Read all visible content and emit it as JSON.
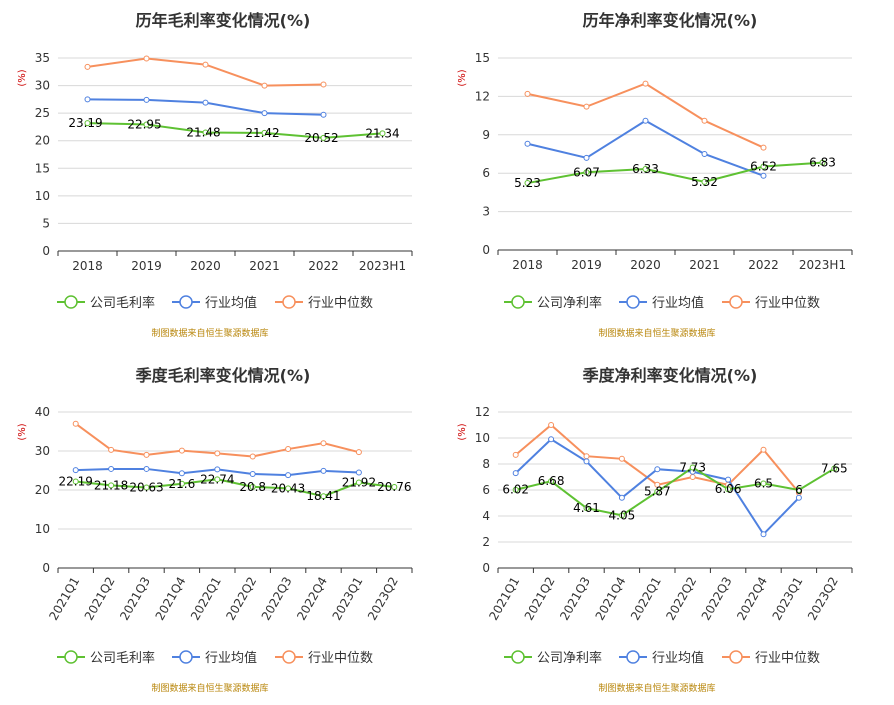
{
  "colors": {
    "company": "#5ec132",
    "industry_avg": "#4f81e0",
    "industry_median": "#f7905d",
    "source": "#b8860b",
    "unit": "#cc0000"
  },
  "chart_data": [
    {
      "type": "line",
      "title": "历年毛利率变化情况(%)",
      "ylabel": "(%)",
      "categories": [
        "2018",
        "2019",
        "2020",
        "2021",
        "2022",
        "2023H1"
      ],
      "ylim": [
        0,
        35
      ],
      "yticks": [
        "0",
        "5",
        "10",
        "15",
        "20",
        "25",
        "30",
        "35"
      ],
      "series": [
        {
          "name": "公司毛利率",
          "values": [
            23.19,
            22.95,
            21.48,
            21.42,
            20.52,
            21.34
          ],
          "labels": [
            "23.19",
            "22.95",
            "21.48",
            "21.42",
            "20.52",
            "21.34"
          ]
        },
        {
          "name": "行业均值",
          "values": [
            27.5,
            27.4,
            26.9,
            25.0,
            24.7,
            null
          ]
        },
        {
          "name": "行业中位数",
          "values": [
            33.4,
            34.9,
            33.8,
            30.0,
            30.2,
            null
          ]
        }
      ],
      "legend": [
        "公司毛利率",
        "行业均值",
        "行业中位数"
      ],
      "source": "制图数据来自恒生聚源数据库",
      "grid": true,
      "legend_position": "bottom"
    },
    {
      "type": "line",
      "title": "历年净利率变化情况(%)",
      "ylabel": "(%)",
      "categories": [
        "2018",
        "2019",
        "2020",
        "2021",
        "2022",
        "2023H1"
      ],
      "ylim": [
        0,
        15
      ],
      "yticks": [
        "0",
        "3",
        "6",
        "9",
        "12",
        "15"
      ],
      "series": [
        {
          "name": "公司净利率",
          "values": [
            5.23,
            6.07,
            6.33,
            5.32,
            6.52,
            6.83
          ],
          "labels": [
            "5.23",
            "6.07",
            "6.33",
            "5.32",
            "6.52",
            "6.83"
          ]
        },
        {
          "name": "行业均值",
          "values": [
            8.3,
            7.2,
            10.1,
            7.5,
            5.8,
            null
          ]
        },
        {
          "name": "行业中位数",
          "values": [
            12.2,
            11.2,
            13.0,
            10.1,
            8.0,
            null
          ]
        }
      ],
      "legend": [
        "公司净利率",
        "行业均值",
        "行业中位数"
      ],
      "source": "制图数据来自恒生聚源数据库",
      "grid": true,
      "legend_position": "bottom"
    },
    {
      "type": "line",
      "title": "季度毛利率变化情况(%)",
      "ylabel": "(%)",
      "categories": [
        "2021Q1",
        "2021Q2",
        "2021Q3",
        "2021Q4",
        "2022Q1",
        "2022Q2",
        "2022Q3",
        "2022Q4",
        "2023Q1",
        "2023Q2"
      ],
      "ylim": [
        0,
        40
      ],
      "yticks": [
        "0",
        "10",
        "20",
        "30",
        "40"
      ],
      "series": [
        {
          "name": "公司毛利率",
          "values": [
            22.19,
            21.18,
            20.63,
            21.6,
            22.74,
            20.8,
            20.43,
            18.41,
            21.92,
            20.76
          ],
          "labels": [
            "22.19",
            "21.18",
            "20.63",
            "21.6",
            "22.74",
            "20.8",
            "20.43",
            "18.41",
            "21.92",
            "20.76"
          ]
        },
        {
          "name": "行业均值",
          "values": [
            25.1,
            25.4,
            25.4,
            24.3,
            25.3,
            24.1,
            23.8,
            24.9,
            24.5,
            null
          ]
        },
        {
          "name": "行业中位数",
          "values": [
            37.0,
            30.3,
            29.0,
            30.1,
            29.4,
            28.6,
            30.5,
            32.0,
            29.7,
            null
          ]
        }
      ],
      "legend": [
        "公司毛利率",
        "行业均值",
        "行业中位数"
      ],
      "source": "制图数据来自恒生聚源数据库",
      "grid": true,
      "legend_position": "bottom"
    },
    {
      "type": "line",
      "title": "季度净利率变化情况(%)",
      "ylabel": "(%)",
      "categories": [
        "2021Q1",
        "2021Q2",
        "2021Q3",
        "2021Q4",
        "2022Q1",
        "2022Q2",
        "2022Q3",
        "2022Q4",
        "2023Q1",
        "2023Q2"
      ],
      "ylim": [
        0,
        12
      ],
      "yticks": [
        "0",
        "2",
        "4",
        "6",
        "8",
        "10",
        "12"
      ],
      "series": [
        {
          "name": "公司净利率",
          "values": [
            6.02,
            6.68,
            4.61,
            4.05,
            5.87,
            7.73,
            6.06,
            6.5,
            6,
            7.65
          ],
          "labels": [
            "6.02",
            "6.68",
            "4.61",
            "4.05",
            "5.87",
            "7.73",
            "6.06",
            "6.5",
            "6",
            "7.65"
          ]
        },
        {
          "name": "行业均值",
          "values": [
            7.3,
            9.9,
            8.2,
            5.4,
            7.6,
            7.4,
            6.8,
            2.6,
            5.4,
            null
          ]
        },
        {
          "name": "行业中位数",
          "values": [
            8.7,
            11.0,
            8.6,
            8.4,
            6.4,
            7.0,
            6.4,
            9.1,
            5.8,
            null
          ]
        }
      ],
      "legend": [
        "公司净利率",
        "行业均值",
        "行业中位数"
      ],
      "source": "制图数据来自恒生聚源数据库",
      "grid": true,
      "legend_position": "bottom"
    }
  ]
}
